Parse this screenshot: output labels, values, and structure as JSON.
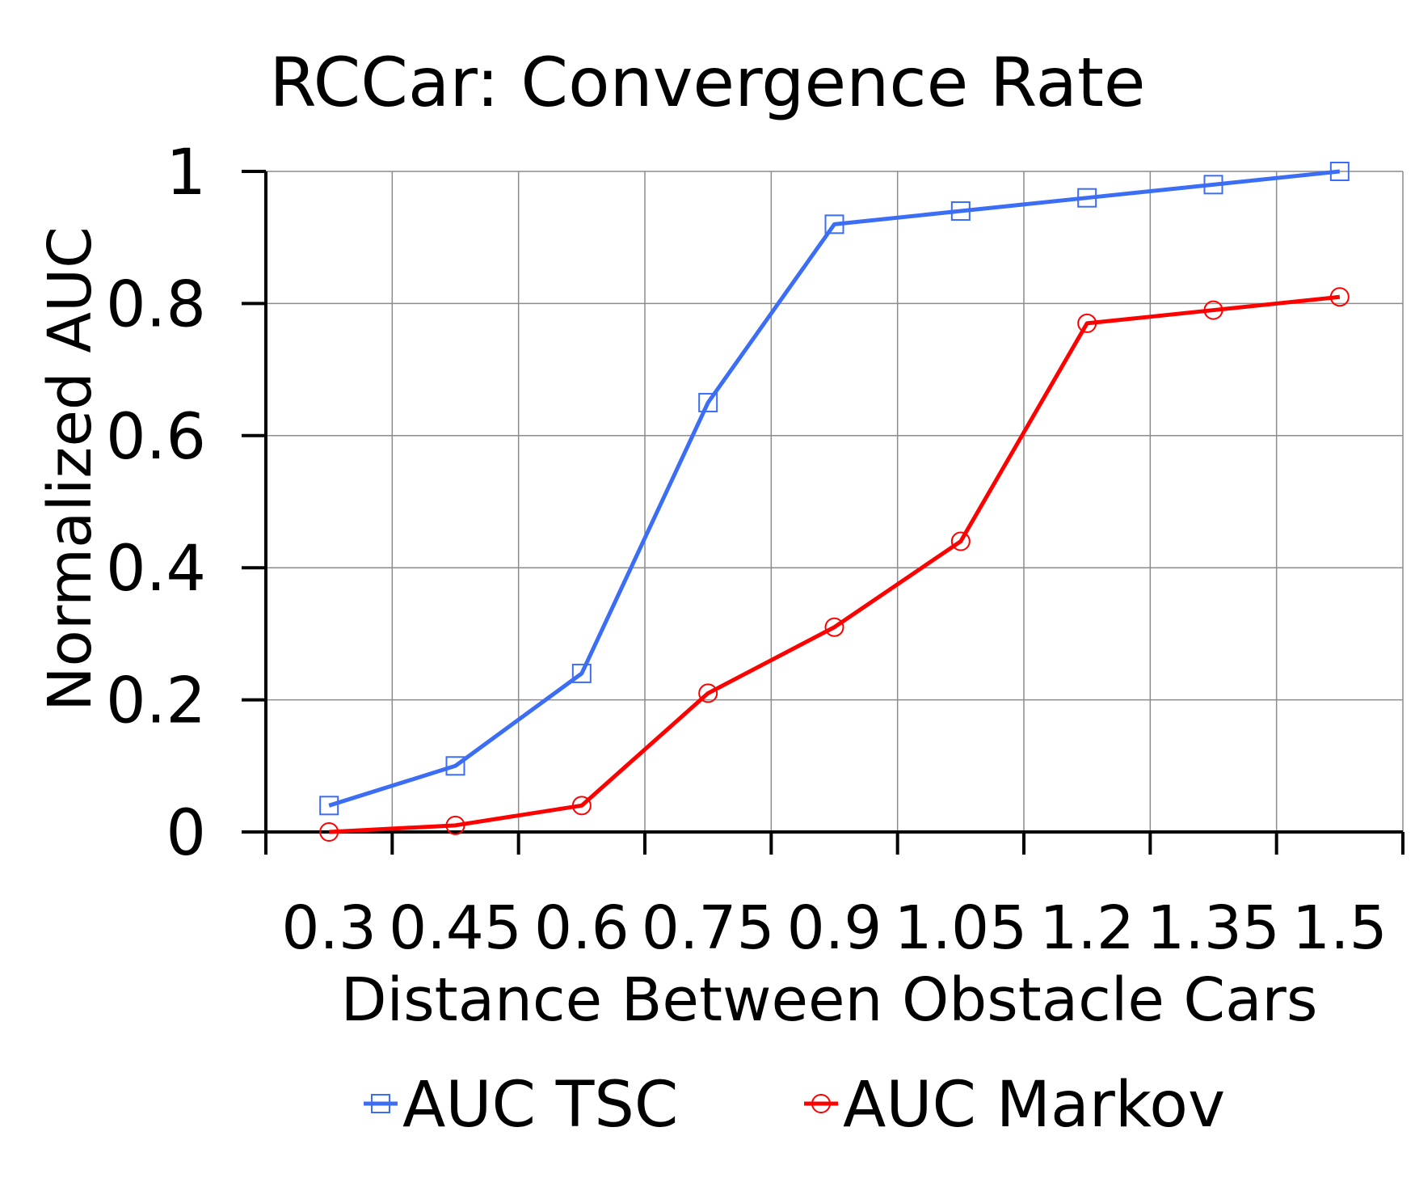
{
  "chart_data": {
    "type": "line",
    "title": "RCCar: Convergence Rate",
    "xlabel": "Distance Between Obstacle Cars",
    "ylabel": "Normalized AUC",
    "categories": [
      "0.3",
      "0.45",
      "0.6",
      "0.75",
      "0.9",
      "1.05",
      "1.2",
      "1.35",
      "1.5"
    ],
    "ylim": [
      0,
      1
    ],
    "yticks": [
      0,
      0.2,
      0.4,
      0.6,
      0.8,
      1
    ],
    "ytick_labels": [
      "0",
      "0.2",
      "0.4",
      "0.6",
      "0.8",
      "1"
    ],
    "grid": true,
    "legend_position": "bottom",
    "series": [
      {
        "name": "AUC TSC",
        "color": "#3b6ef5",
        "marker": "square",
        "values": [
          0.04,
          0.1,
          0.24,
          0.65,
          0.92,
          0.94,
          0.96,
          0.98,
          1.0
        ]
      },
      {
        "name": "AUC Markov",
        "color": "#ff0000",
        "marker": "circle",
        "values": [
          0.0,
          0.01,
          0.04,
          0.21,
          0.31,
          0.44,
          0.77,
          0.79,
          0.81
        ]
      }
    ]
  }
}
